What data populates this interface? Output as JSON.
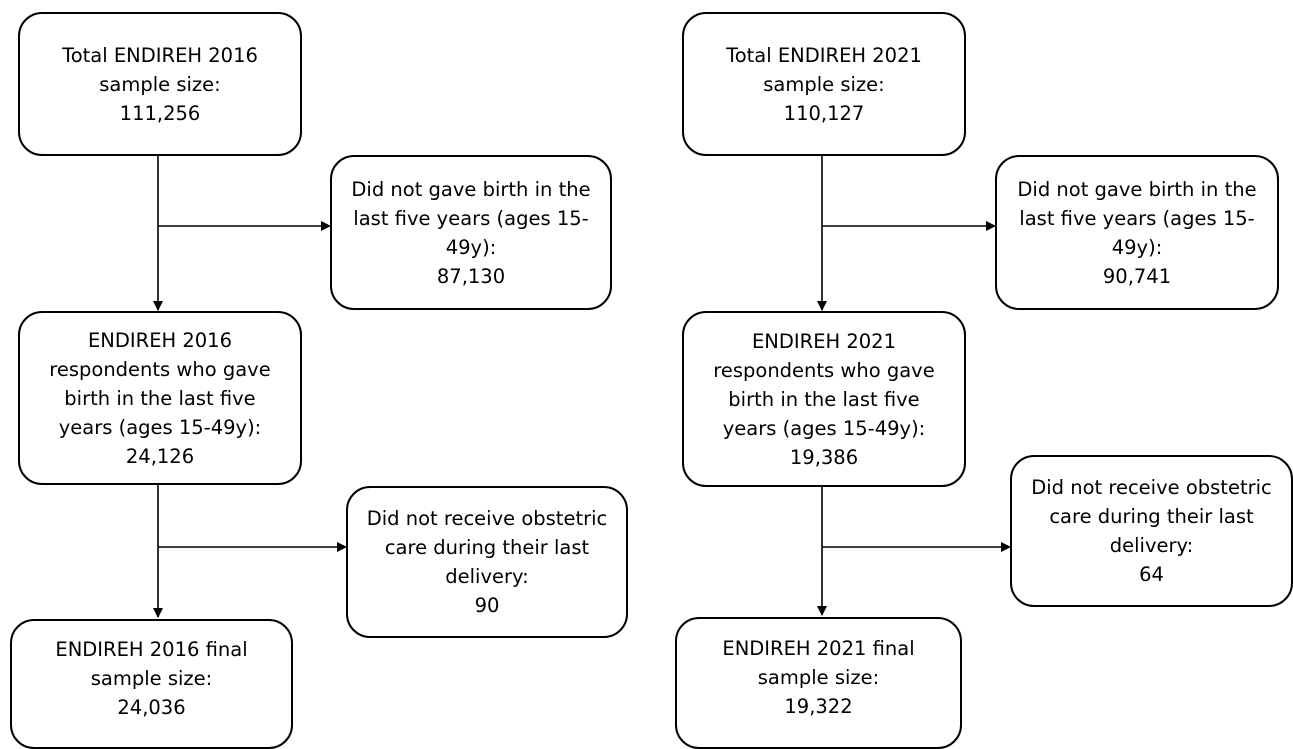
{
  "left": {
    "total": [
      "Total ENDIREH 2016",
      "sample size:",
      "111,256"
    ],
    "excluded_birth": [
      "Did not gave birth in the",
      "last five years (ages 15-",
      "49y):",
      "87,130"
    ],
    "respondents": [
      "ENDIREH 2016",
      "respondents who gave",
      "birth in the last five",
      "years (ages 15-49y):",
      "24,126"
    ],
    "excluded_care": [
      "Did not receive obstetric",
      "care during their last",
      "delivery:",
      "90"
    ],
    "final": [
      "ENDIREH 2016 final",
      "sample size:",
      "24,036"
    ]
  },
  "right": {
    "total": [
      "Total ENDIREH 2021",
      "sample size:",
      "110,127"
    ],
    "excluded_birth": [
      "Did not gave birth in the",
      "last five years (ages 15-",
      "49y):",
      "90,741"
    ],
    "respondents": [
      "ENDIREH 2021",
      "respondents who gave",
      "birth in the last five",
      "years (ages 15-49y):",
      "19,386"
    ],
    "excluded_care": [
      "Did not receive obstetric",
      "care during their last",
      "delivery:",
      "64"
    ],
    "final": [
      "ENDIREH 2021 final",
      "sample size:",
      "19,322"
    ]
  }
}
